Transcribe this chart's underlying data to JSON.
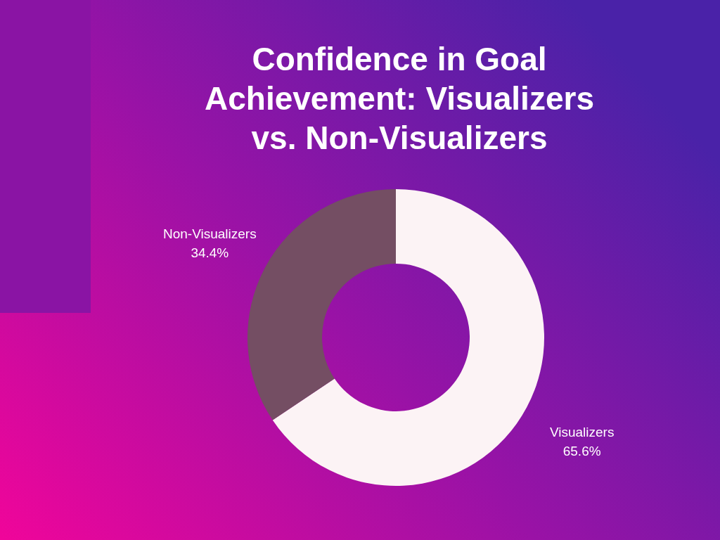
{
  "chart_data": {
    "type": "donut",
    "title": "Confidence in Goal Achievement: Visualizers vs. Non-Visualizers",
    "categories": [
      "Visualizers",
      "Non-Visualizers"
    ],
    "values": [
      65.6,
      34.4
    ],
    "colors": [
      "#fcf3f5",
      "#744e63"
    ],
    "value_labels": [
      "65.6%",
      "34.4%"
    ]
  }
}
